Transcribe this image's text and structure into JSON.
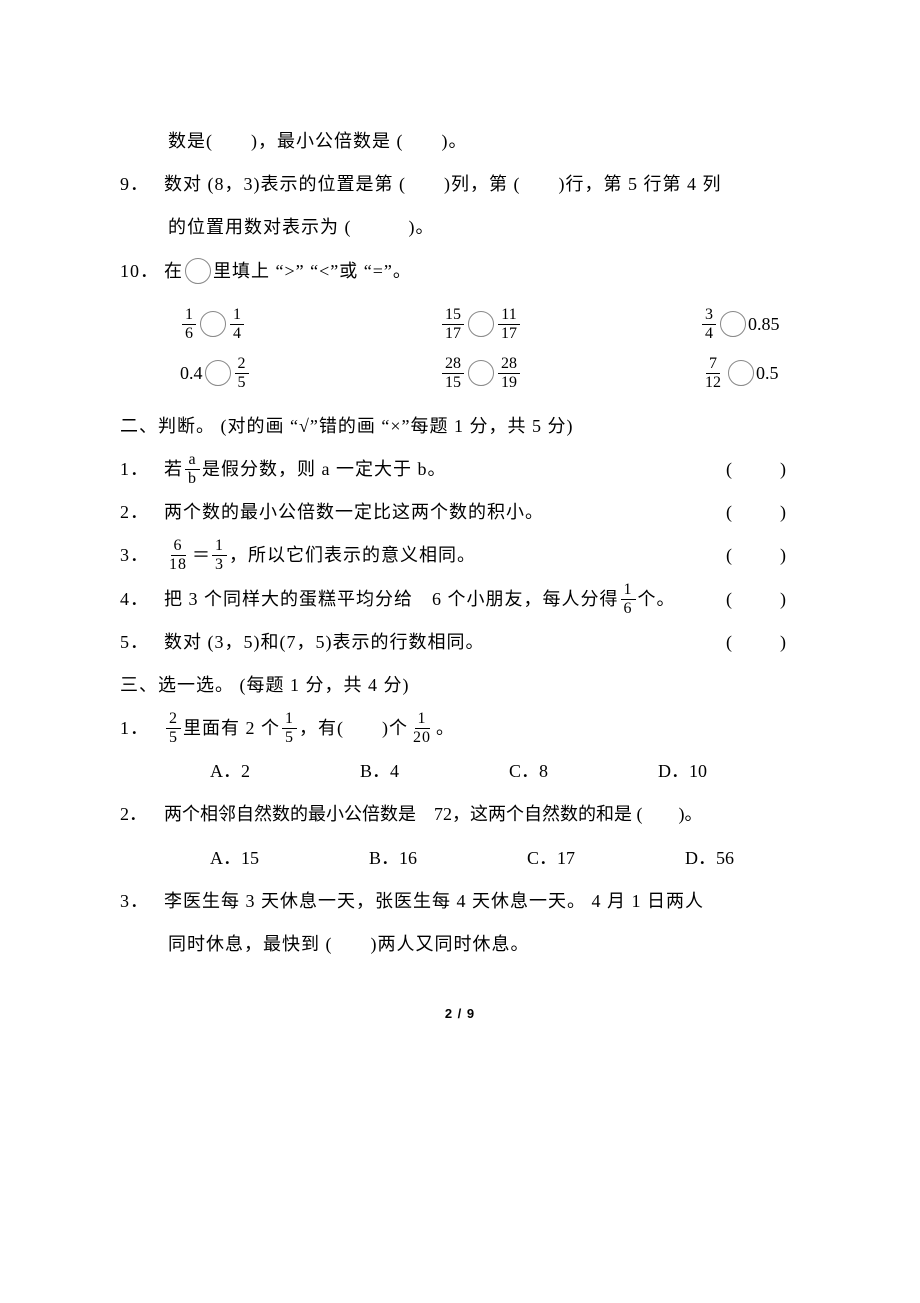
{
  "q8_cont_l1": "数是(　　)，最小公倍数是 (　　)。",
  "q9_num": "9．",
  "q9_l1": "数对 (8，3)表示的位置是第 (　　)列，第 (　　)行，第 5 行第 4 列",
  "q9_l2": "的位置用数对表示为 (　　　)。",
  "q10_num": "10．",
  "q10_stem_a": "在",
  "q10_stem_b": "里填上 “>” “<”或 “=”。",
  "cmp": {
    "r1c1_a_n": "1",
    "r1c1_a_d": "6",
    "r1c1_b_n": "1",
    "r1c1_b_d": "4",
    "r1c2_a_n": "15",
    "r1c2_a_d": "17",
    "r1c2_b_n": "11",
    "r1c2_b_d": "17",
    "r1c3_a_n": "3",
    "r1c3_a_d": "4",
    "r1c3_b": "0.85",
    "r2c1_a": "0.4",
    "r2c1_b_n": "2",
    "r2c1_b_d": "5",
    "r2c2_a_n": "28",
    "r2c2_a_d": "15",
    "r2c2_b_n": "28",
    "r2c2_b_d": "19",
    "r2c3_a_n": "7",
    "r2c3_a_d": "12",
    "r2c3_b": "0.5"
  },
  "sect2": "二、判断。 (对的画 “√”错的画 “×”每题 1 分，共 5 分)",
  "j1_num": "1．",
  "j1_a": "若",
  "j1_frac_n": "a",
  "j1_frac_d": "b",
  "j1_b": "是假分数，则 a 一定大于 b。",
  "j2_num": "2．",
  "j2": "两个数的最小公倍数一定比这两个数的积小。",
  "j3_num": "3．",
  "j3_f1_n": "6",
  "j3_f1_d": "18",
  "j3_eq": "＝",
  "j3_f2_n": "1",
  "j3_f2_d": "3",
  "j3_b": "，所以它们表示的意义相同。",
  "j4_num": "4．",
  "j4_a": "把 3 个同样大的蛋糕平均分给　6 个小朋友，每人分得 ",
  "j4_f_n": "1",
  "j4_f_d": "6",
  "j4_b": "个。",
  "j5_num": "5．",
  "j5": "数对 (3，5)和(7，5)表示的行数相同。",
  "paren": "(　　)",
  "sect3": "三、选一选。 (每题 1 分，共 4 分)",
  "c1_num": "1．",
  "c1_f1_n": "2",
  "c1_f1_d": "5",
  "c1_a": "里面有 2 个",
  "c1_f2_n": "1",
  "c1_f2_d": "5",
  "c1_b": "，有(　　)个",
  "c1_f3_n": "1",
  "c1_f3_d": "20",
  "c1_c": "。",
  "c1_optA": "A．2",
  "c1_optB": "B．4",
  "c1_optC": "C．8",
  "c1_optD": "D．10",
  "c2_num": "2．",
  "c2": "两个相邻自然数的最小公倍数是　72，这两个自然数的和是 (　　)。",
  "c2_optA": "A．15",
  "c2_optB": "B．16",
  "c2_optC": "C．17",
  "c2_optD": "D．56",
  "c3_num": "3．",
  "c3_l1": "李医生每 3 天休息一天，张医生每 4 天休息一天。 4 月 1 日两人",
  "c3_l2": "同时休息，最快到 (　　)两人又同时休息。",
  "pagenum": "2 / 9"
}
